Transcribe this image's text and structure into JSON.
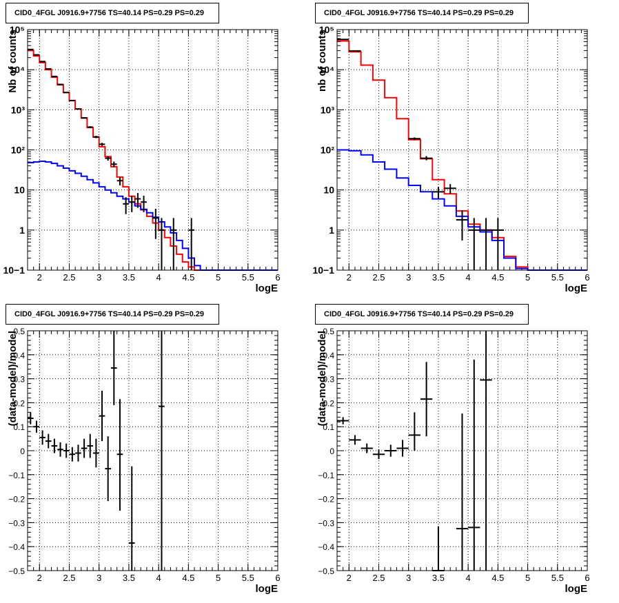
{
  "panels": [
    {
      "title": "CID0_4FGL J0916.9+7756 TS=40.14 PS=0.29 PS=0.29",
      "chart_data": {
        "type": "line",
        "log_y": true,
        "xlabel": "logE",
        "ylabel": "Nb of counts",
        "xlim": [
          1.8,
          6.0
        ],
        "ylim": [
          0.1,
          100000
        ],
        "grid": true,
        "x_ticks": [
          "2",
          "2.5",
          "3",
          "3.5",
          "4",
          "4.5",
          "5",
          "5.5",
          "6"
        ],
        "y_ticks": [
          "10−1",
          "1",
          "10",
          "10²",
          "10³",
          "10⁴",
          "10⁵"
        ],
        "bin_edges": [
          1.8,
          1.9,
          2.0,
          2.1,
          2.2,
          2.3,
          2.4,
          2.5,
          2.6,
          2.7,
          2.8,
          2.9,
          3.0,
          3.1,
          3.2,
          3.3,
          3.4,
          3.5,
          3.6,
          3.7,
          3.8,
          3.9,
          4.0,
          4.1,
          4.2,
          4.3,
          4.4,
          4.5,
          4.6,
          4.7,
          4.8,
          4.9,
          5.0,
          5.1,
          5.2,
          5.3,
          5.4,
          5.5,
          5.6,
          5.7,
          5.8,
          5.9,
          6.0
        ],
        "series": [
          {
            "color": "#ff0000",
            "style": "step",
            "values": [
              30000,
              22000,
              15000,
              10000,
              6500,
              4200,
              2700,
              1700,
              1050,
              620,
              360,
              210,
              120,
              68,
              38,
              21,
              12,
              7,
              4.5,
              3.2,
              2.2,
              1.5,
              1.0,
              0.65,
              0.4,
              0.25,
              0.16,
              0.12,
              0.1,
              0.1,
              0.1,
              0.1,
              0.1,
              0.1,
              0.1,
              0.1,
              0.1,
              0.1,
              0.1,
              0.1,
              0.1,
              0.1
            ]
          },
          {
            "color": "#0000ff",
            "style": "step",
            "values": [
              48,
              50,
              52,
              50,
              46,
              40,
              35,
              30,
              26,
              22,
              18,
              15,
              12,
              10,
              8.5,
              7,
              6,
              5,
              4,
              3.3,
              2.7,
              2.1,
              1.6,
              1.2,
              0.85,
              0.55,
              0.35,
              0.2,
              0.13,
              0.1,
              0.1,
              0.1,
              0.1,
              0.1,
              0.1,
              0.1,
              0.1,
              0.1,
              0.1,
              0.1,
              0.1,
              0.1
            ]
          }
        ],
        "data_points": [
          {
            "x": 1.85,
            "y": 32000,
            "lo": 31500,
            "hi": 32500
          },
          {
            "x": 1.95,
            "y": 23500,
            "lo": 23000,
            "hi": 24000
          },
          {
            "x": 2.05,
            "y": 16000,
            "lo": 15700,
            "hi": 16300
          },
          {
            "x": 2.15,
            "y": 10500,
            "lo": 10300,
            "hi": 10700
          },
          {
            "x": 2.25,
            "y": 6800,
            "lo": 6650,
            "hi": 6950
          },
          {
            "x": 2.35,
            "y": 4300,
            "lo": 4200,
            "hi": 4400
          },
          {
            "x": 2.45,
            "y": 2700,
            "lo": 2650,
            "hi": 2750
          },
          {
            "x": 2.55,
            "y": 1700,
            "lo": 1660,
            "hi": 1740
          },
          {
            "x": 2.65,
            "y": 1050,
            "lo": 1020,
            "hi": 1080
          },
          {
            "x": 2.75,
            "y": 630,
            "lo": 605,
            "hi": 655
          },
          {
            "x": 2.85,
            "y": 370,
            "lo": 350,
            "hi": 390
          },
          {
            "x": 2.95,
            "y": 210,
            "lo": 196,
            "hi": 224
          },
          {
            "x": 3.05,
            "y": 138,
            "lo": 126,
            "hi": 150
          },
          {
            "x": 3.15,
            "y": 62,
            "lo": 54,
            "hi": 70
          },
          {
            "x": 3.25,
            "y": 44,
            "lo": 37,
            "hi": 51
          },
          {
            "x": 3.35,
            "y": 17,
            "lo": 13,
            "hi": 21
          },
          {
            "x": 3.45,
            "y": 4.5,
            "lo": 2.5,
            "hi": 6.6
          },
          {
            "x": 3.55,
            "y": 5,
            "lo": 2.8,
            "hi": 7.2
          },
          {
            "x": 3.65,
            "y": 6,
            "lo": 3.6,
            "hi": 8.4
          },
          {
            "x": 3.75,
            "y": 5,
            "lo": 2.8,
            "hi": 7.2
          },
          {
            "x": 3.95,
            "y": 2,
            "lo": 0.6,
            "hi": 3.4
          },
          {
            "x": 4.05,
            "y": 1,
            "lo": 0.1,
            "hi": 2
          },
          {
            "x": 4.25,
            "y": 1,
            "lo": 0.1,
            "hi": 2
          },
          {
            "x": 4.55,
            "y": 1,
            "lo": 0.1,
            "hi": 2
          }
        ]
      }
    },
    {
      "title": "CID0_4FGL J0916.9+7756 TS=40.14 PS=0.29 PS=0.29",
      "chart_data": {
        "type": "line",
        "log_y": true,
        "xlabel": "logE",
        "ylabel": "nb of counts",
        "xlim": [
          1.8,
          6.0
        ],
        "ylim": [
          0.1,
          100000
        ],
        "grid": true,
        "x_ticks": [
          "2",
          "2.5",
          "3",
          "3.5",
          "4",
          "4.5",
          "5",
          "5.5",
          "6"
        ],
        "y_ticks": [
          "10−1",
          "1",
          "10",
          "10²",
          "10³",
          "10⁴",
          "10⁵"
        ],
        "bin_edges": [
          1.8,
          2.0,
          2.2,
          2.4,
          2.6,
          2.8,
          3.0,
          3.2,
          3.4,
          3.6,
          3.8,
          4.0,
          4.2,
          4.4,
          4.6,
          4.8,
          5.0,
          5.2,
          5.4,
          5.6,
          5.8,
          6.0
        ],
        "series": [
          {
            "color": "#ff0000",
            "style": "step",
            "values": [
              52000,
              28000,
              13000,
              5500,
              2000,
              600,
              180,
              60,
              18,
              8,
              3,
              1.4,
              1.0,
              0.65,
              0.22,
              0.12,
              0.1,
              0.1,
              0.1,
              0.1,
              0.1
            ]
          },
          {
            "color": "#0000ff",
            "style": "step",
            "values": [
              100,
              95,
              75,
              50,
              33,
              20,
              13,
              9,
              6,
              4,
              2.2,
              1.2,
              0.9,
              0.55,
              0.2,
              0.11,
              0.1,
              0.1,
              0.1,
              0.1,
              0.1
            ]
          }
        ],
        "data_points": [
          {
            "x": 1.9,
            "y": 57000,
            "lo": 56500,
            "hi": 57500
          },
          {
            "x": 2.1,
            "y": 29500,
            "lo": 29000,
            "hi": 30000
          },
          {
            "x": 3.1,
            "y": 190,
            "lo": 175,
            "hi": 205
          },
          {
            "x": 3.3,
            "y": 62,
            "lo": 55,
            "hi": 70
          },
          {
            "x": 3.5,
            "y": 9,
            "lo": 6,
            "hi": 12
          },
          {
            "x": 3.7,
            "y": 11,
            "lo": 8,
            "hi": 14
          },
          {
            "x": 3.9,
            "y": 1.8,
            "lo": 0.55,
            "hi": 3.1
          },
          {
            "x": 4.1,
            "y": 1,
            "lo": 0.1,
            "hi": 2
          },
          {
            "x": 4.3,
            "y": 1,
            "lo": 0.1,
            "hi": 2
          },
          {
            "x": 4.5,
            "y": 1,
            "lo": 0.1,
            "hi": 2
          }
        ]
      }
    },
    {
      "title": "CID0_4FGL J0916.9+7756 TS=40.14 PS=0.29 PS=0.29",
      "chart_data": {
        "type": "scatter",
        "log_y": false,
        "xlabel": "logE",
        "ylabel": "(data-model)/model",
        "xlim": [
          1.8,
          6.0
        ],
        "ylim": [
          -0.5,
          0.5
        ],
        "grid": true,
        "x_ticks": [
          "2",
          "2.5",
          "3",
          "3.5",
          "4",
          "4.5",
          "5",
          "5.5",
          "6"
        ],
        "y_ticks": [
          "−0.5",
          "−0.4",
          "−0.3",
          "−0.2",
          "−0.1",
          "0",
          "0.1",
          "0.2",
          "0.3",
          "0.4",
          "0.5"
        ],
        "bin_width": 0.1,
        "data_points": [
          {
            "x": 1.85,
            "y": 0.135,
            "lo": 0.11,
            "hi": 0.16
          },
          {
            "x": 1.95,
            "y": 0.1,
            "lo": 0.075,
            "hi": 0.125
          },
          {
            "x": 2.05,
            "y": 0.055,
            "lo": 0.025,
            "hi": 0.085
          },
          {
            "x": 2.15,
            "y": 0.04,
            "lo": 0.01,
            "hi": 0.07
          },
          {
            "x": 2.25,
            "y": 0.02,
            "lo": -0.01,
            "hi": 0.05
          },
          {
            "x": 2.35,
            "y": 0.005,
            "lo": -0.025,
            "hi": 0.035
          },
          {
            "x": 2.45,
            "y": 0.0,
            "lo": -0.03,
            "hi": 0.03
          },
          {
            "x": 2.55,
            "y": -0.015,
            "lo": -0.045,
            "hi": 0.015
          },
          {
            "x": 2.65,
            "y": -0.01,
            "lo": -0.045,
            "hi": 0.025
          },
          {
            "x": 2.75,
            "y": 0.01,
            "lo": -0.03,
            "hi": 0.05
          },
          {
            "x": 2.85,
            "y": 0.02,
            "lo": -0.03,
            "hi": 0.07
          },
          {
            "x": 2.95,
            "y": -0.01,
            "lo": -0.07,
            "hi": 0.05
          },
          {
            "x": 3.05,
            "y": 0.145,
            "lo": 0.04,
            "hi": 0.25
          },
          {
            "x": 3.15,
            "y": -0.075,
            "lo": -0.21,
            "hi": 0.06
          },
          {
            "x": 3.25,
            "y": 0.345,
            "lo": 0.19,
            "hi": 0.5
          },
          {
            "x": 3.35,
            "y": -0.015,
            "lo": -0.25,
            "hi": 0.215
          },
          {
            "x": 3.55,
            "y": -0.385,
            "lo": -0.5,
            "hi": -0.065
          },
          {
            "x": 4.05,
            "y": 0.185,
            "lo": -0.5,
            "hi": 0.5
          }
        ]
      }
    },
    {
      "title": "CID0_4FGL J0916.9+7756 TS=40.14 PS=0.29 PS=0.29",
      "chart_data": {
        "type": "scatter",
        "log_y": false,
        "xlabel": "logE",
        "ylabel": "(data-model)/model",
        "xlim": [
          1.8,
          6.0
        ],
        "ylim": [
          -0.5,
          0.5
        ],
        "grid": true,
        "x_ticks": [
          "2",
          "2.5",
          "3",
          "3.5",
          "4",
          "4.5",
          "5",
          "5.5",
          "6"
        ],
        "y_ticks": [
          "−0.5",
          "−0.4",
          "−0.3",
          "−0.2",
          "−0.1",
          "0",
          "0.1",
          "0.2",
          "0.3",
          "0.4",
          "0.5"
        ],
        "bin_width": 0.2,
        "data_points": [
          {
            "x": 1.9,
            "y": 0.125,
            "lo": 0.11,
            "hi": 0.14
          },
          {
            "x": 2.1,
            "y": 0.045,
            "lo": 0.025,
            "hi": 0.065
          },
          {
            "x": 2.3,
            "y": 0.01,
            "lo": -0.01,
            "hi": 0.03
          },
          {
            "x": 2.5,
            "y": -0.015,
            "lo": -0.035,
            "hi": 0.005
          },
          {
            "x": 2.7,
            "y": 0.0,
            "lo": -0.025,
            "hi": 0.025
          },
          {
            "x": 2.9,
            "y": 0.01,
            "lo": -0.025,
            "hi": 0.045
          },
          {
            "x": 3.1,
            "y": 0.065,
            "lo": 0.0,
            "hi": 0.16
          },
          {
            "x": 3.3,
            "y": 0.215,
            "lo": 0.06,
            "hi": 0.37
          },
          {
            "x": 3.5,
            "y": -0.5,
            "lo": -0.5,
            "hi": -0.315
          },
          {
            "x": 3.9,
            "y": -0.325,
            "lo": -0.5,
            "hi": 0.155
          },
          {
            "x": 4.1,
            "y": -0.32,
            "lo": -0.5,
            "hi": 0.38
          },
          {
            "x": 4.3,
            "y": 0.295,
            "lo": -0.5,
            "hi": 0.5
          }
        ]
      }
    }
  ]
}
